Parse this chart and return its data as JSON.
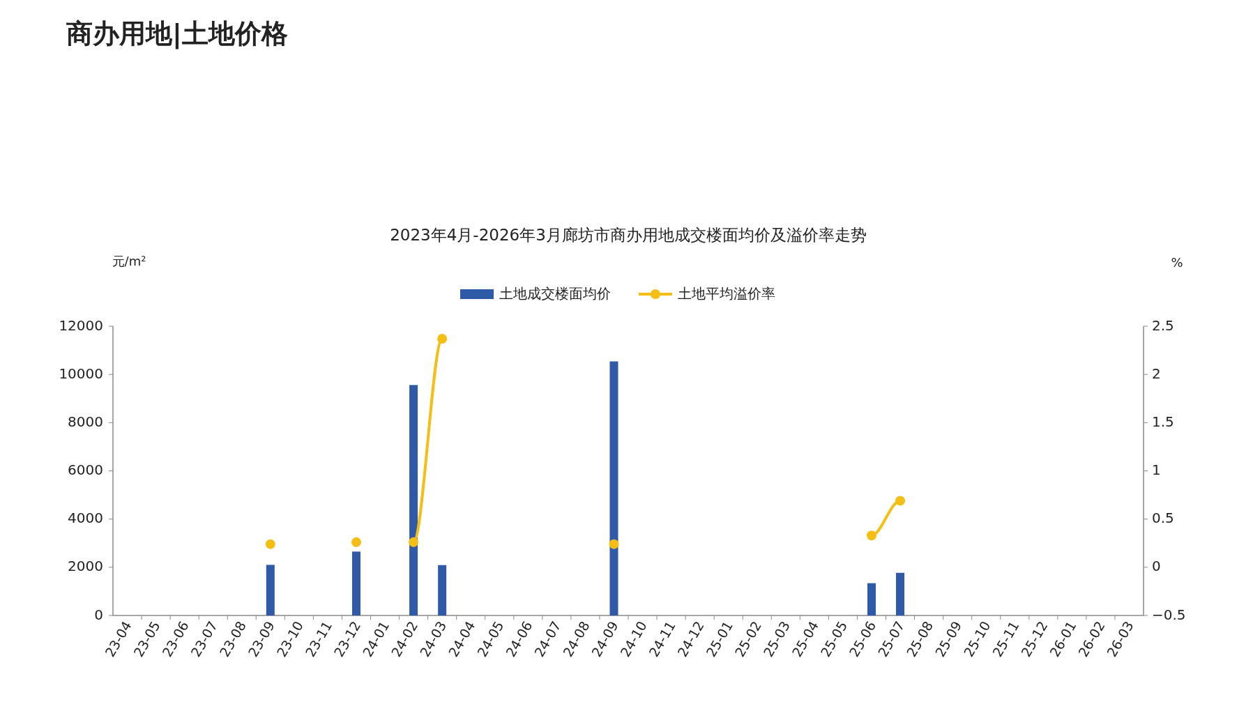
{
  "chart_data": {
    "type": "bar",
    "title": "2023年4月-2026年3月廊坊市商办用地成交楼面均价及溢价率走势",
    "annotations": [
      "商办用地|土地价格"
    ],
    "ylabel": "元/m²",
    "y2label": "%",
    "categories": [
      "23-04",
      "23-05",
      "23-06",
      "23-07",
      "23-08",
      "23-09",
      "23-10",
      "23-11",
      "23-12",
      "24-01",
      "24-02",
      "24-03",
      "24-04",
      "24-05",
      "24-06",
      "24-07",
      "24-08",
      "24-09",
      "24-10",
      "24-11",
      "24-12",
      "25-01",
      "25-02",
      "25-03",
      "25-04",
      "25-05",
      "25-06",
      "25-07",
      "25-08",
      "25-09",
      "25-10",
      "25-11",
      "25-12",
      "26-01",
      "26-02",
      "26-03"
    ],
    "series": [
      {
        "name": "土地成交楼面均价",
        "color": "#2f5aa8",
        "values": [
          null,
          null,
          null,
          null,
          null,
          2100,
          null,
          null,
          2650,
          null,
          9560,
          2090,
          null,
          null,
          null,
          null,
          null,
          10540,
          null,
          null,
          null,
          null,
          null,
          null,
          null,
          null,
          1340,
          1770,
          null,
          null,
          null,
          null,
          null,
          null,
          null,
          null
        ]
      },
      {
        "name": "土地平均溢价率",
        "type": "line",
        "axis": "y2",
        "marker": "circle",
        "color": "#f5be14",
        "values": [
          null,
          null,
          null,
          null,
          null,
          0.24,
          null,
          null,
          0.26,
          null,
          0.26,
          2.37,
          null,
          null,
          null,
          null,
          null,
          0.24,
          null,
          null,
          null,
          null,
          null,
          null,
          null,
          null,
          0.33,
          0.69,
          null,
          null,
          null,
          null,
          null,
          null,
          null,
          null
        ]
      }
    ],
    "ylim": [
      0,
      12000
    ],
    "yticks": [
      0,
      2000,
      4000,
      6000,
      8000,
      10000,
      12000
    ],
    "y2lim": [
      -0.5,
      2.5
    ],
    "y2ticks": [
      -0.5,
      0,
      0.5,
      1,
      1.5,
      2,
      2.5
    ],
    "legend": "top",
    "grid": false
  }
}
